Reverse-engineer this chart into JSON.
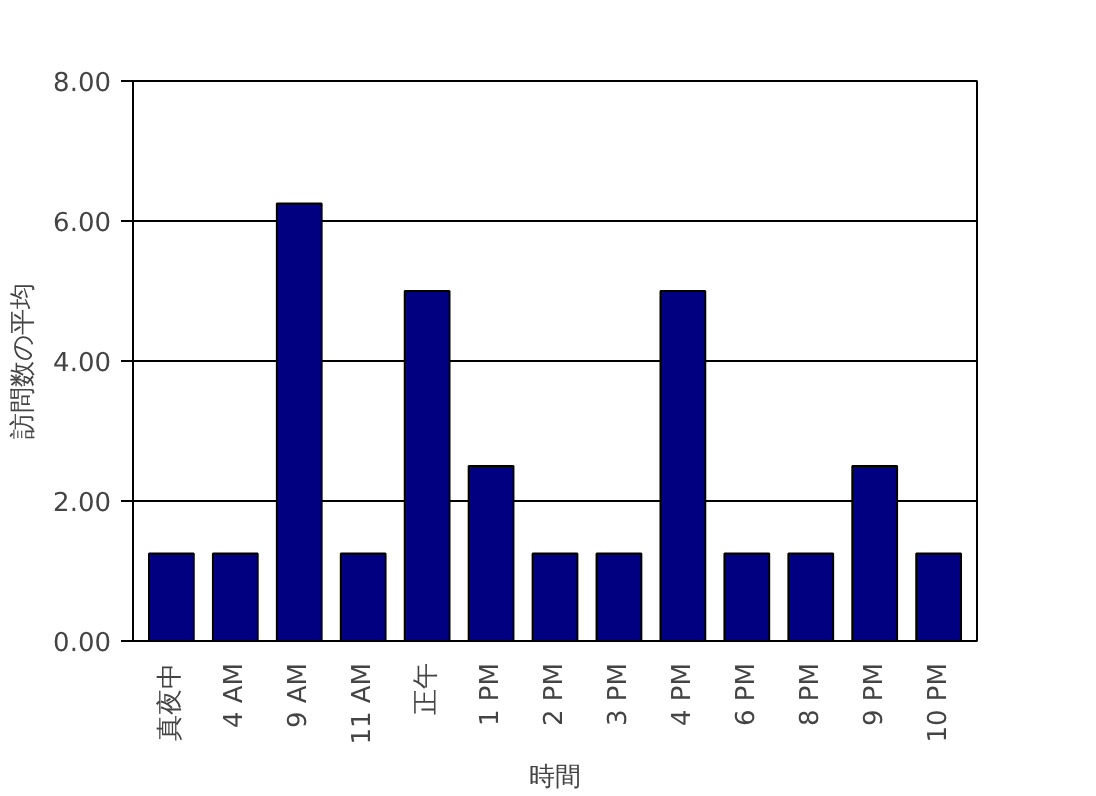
{
  "chart_data": {
    "type": "bar",
    "xlabel": "時間",
    "ylabel": "訪問数の平均",
    "categories": [
      "真夜中",
      "4 AM",
      "9 AM",
      "11 AM",
      "正午",
      "1 PM",
      "2 PM",
      "3 PM",
      "4 PM",
      "6 PM",
      "8 PM",
      "9 PM",
      "10 PM"
    ],
    "values": [
      1.25,
      1.25,
      6.25,
      1.25,
      5.0,
      2.5,
      1.25,
      1.25,
      5.0,
      1.25,
      1.25,
      2.5,
      1.25
    ],
    "color": "#000080",
    "ylim": [
      0,
      8
    ],
    "yticks": [
      {
        "value": 0,
        "label": "0.00"
      },
      {
        "value": 2,
        "label": "2.00"
      },
      {
        "value": 4,
        "label": "4.00"
      },
      {
        "value": 6,
        "label": "6.00"
      },
      {
        "value": 8,
        "label": "8.00"
      }
    ],
    "grid": "y"
  }
}
